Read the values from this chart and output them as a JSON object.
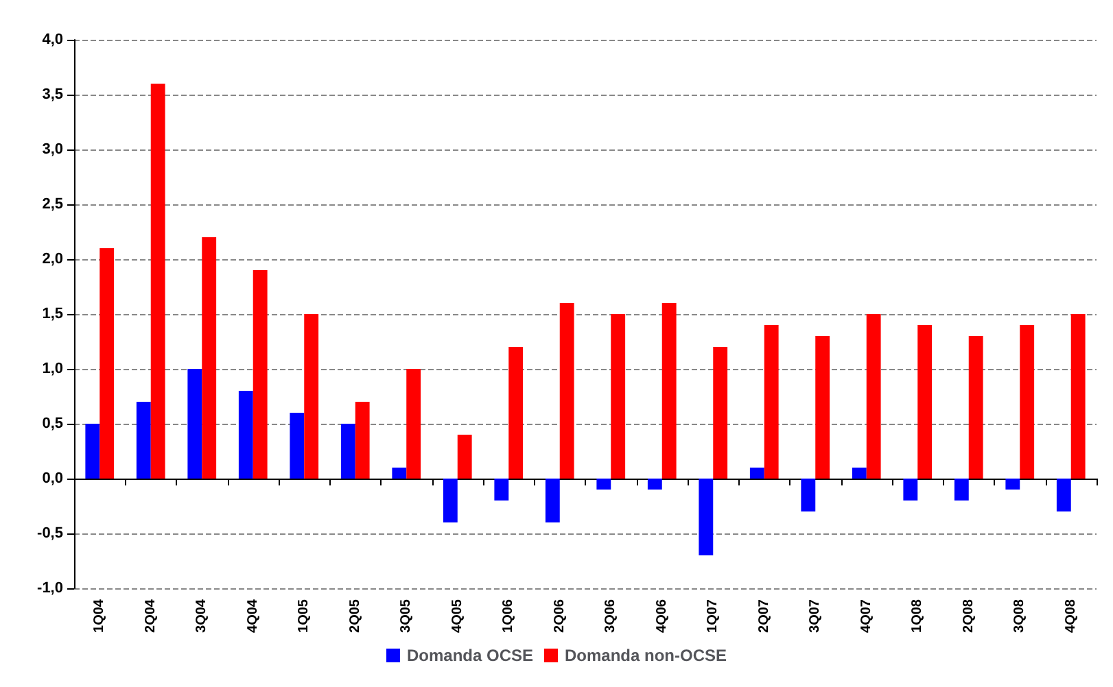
{
  "chart_data": {
    "type": "bar",
    "categories": [
      "1Q04",
      "2Q04",
      "3Q04",
      "4Q04",
      "1Q05",
      "2Q05",
      "3Q05",
      "4Q05",
      "1Q06",
      "2Q06",
      "3Q06",
      "4Q06",
      "1Q07",
      "2Q07",
      "3Q07",
      "4Q07",
      "1Q08",
      "2Q08",
      "3Q08",
      "4Q08"
    ],
    "series": [
      {
        "name": "Domanda OCSE",
        "color": "#0000ff",
        "values": [
          0.5,
          0.7,
          1.0,
          0.8,
          0.6,
          0.5,
          0.1,
          -0.4,
          -0.2,
          -0.4,
          -0.1,
          -0.1,
          -0.7,
          0.1,
          -0.3,
          0.1,
          -0.2,
          -0.2,
          -0.1,
          -0.3
        ]
      },
      {
        "name": "Domanda non-OCSE",
        "color": "#ff0000",
        "values": [
          2.1,
          3.6,
          2.2,
          1.9,
          1.5,
          0.7,
          1.0,
          0.4,
          1.2,
          1.6,
          1.5,
          1.6,
          1.2,
          1.4,
          1.3,
          1.5,
          1.4,
          1.3,
          1.4,
          1.5
        ]
      }
    ],
    "ylim": [
      -1,
      4
    ],
    "yticks": [
      {
        "value": -1,
        "label": "-1,0"
      },
      {
        "value": -0.5,
        "label": "-0,5"
      },
      {
        "value": 0,
        "label": "0,0"
      },
      {
        "value": 0.5,
        "label": "0,5"
      },
      {
        "value": 1,
        "label": "1,0"
      },
      {
        "value": 1.5,
        "label": "1,5"
      },
      {
        "value": 2,
        "label": "2,0"
      },
      {
        "value": 2.5,
        "label": "2,5"
      },
      {
        "value": 3,
        "label": "3,0"
      },
      {
        "value": 3.5,
        "label": "3,5"
      },
      {
        "value": 4,
        "label": "4,0"
      }
    ],
    "grid": "y",
    "legend": "bottom"
  }
}
